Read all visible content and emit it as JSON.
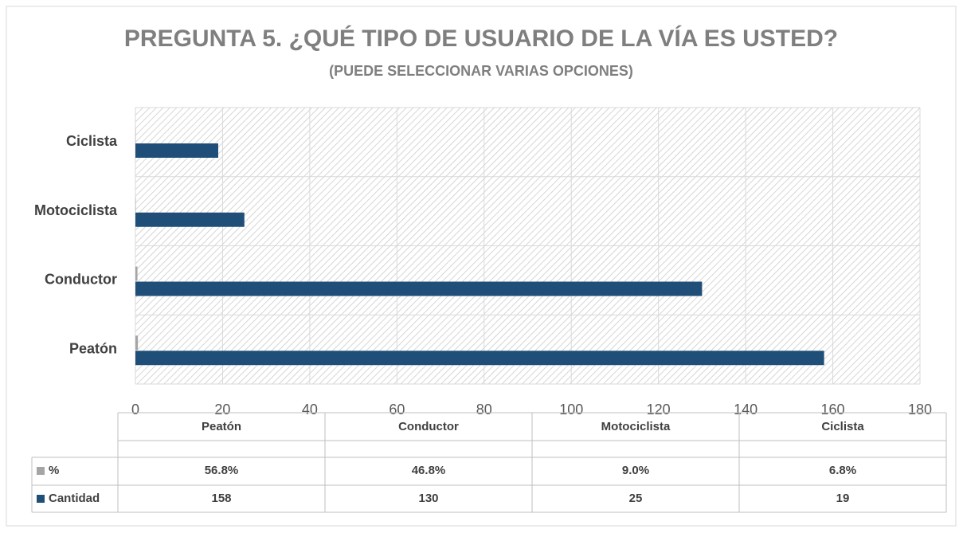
{
  "chart_data": {
    "type": "bar",
    "orientation": "horizontal",
    "title": "PREGUNTA 5. ¿QUÉ TIPO DE USUARIO DE LA VÍA ES USTED?",
    "subtitle": "(PUEDE SELECCIONAR VARIAS OPCIONES)",
    "categories": [
      "Peatón",
      "Conductor",
      "Motociclista",
      "Ciclista"
    ],
    "series": [
      {
        "name": "%",
        "color": "#a5a5a5",
        "values": [
          0.568,
          0.468,
          0.09,
          0.068
        ],
        "value_labels": [
          "56.8%",
          "46.8%",
          "9.0%",
          "6.8%"
        ]
      },
      {
        "name": "Cantidad",
        "color": "#1f4e79",
        "values": [
          158,
          130,
          25,
          19
        ]
      }
    ],
    "xlim": [
      0,
      180
    ],
    "xticks": [
      0,
      20,
      40,
      60,
      80,
      100,
      120,
      140,
      160,
      180
    ],
    "grid": true
  }
}
